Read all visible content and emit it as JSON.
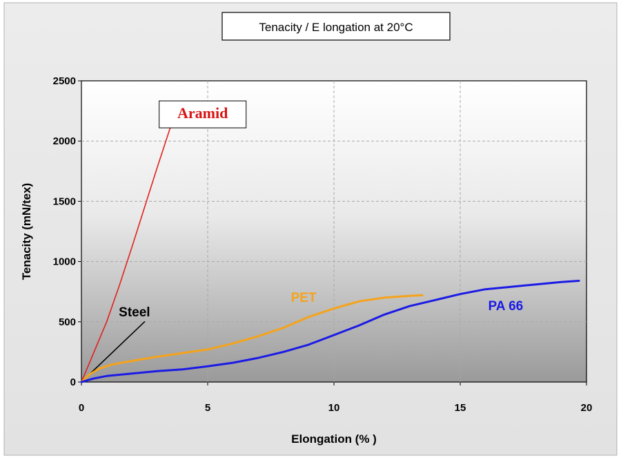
{
  "chart_data": {
    "type": "line",
    "title": "Tenacity  / E longation at 20°C",
    "xlabel": "Elongation (% )",
    "ylabel": "Tenacity (mN/tex)",
    "xlim": [
      0,
      20
    ],
    "ylim": [
      0,
      2500
    ],
    "xticks": [
      "0",
      "5",
      "10",
      "15",
      "20"
    ],
    "yticks": [
      "0",
      "500",
      "1000",
      "1500",
      "2000",
      "2500"
    ],
    "grid": true,
    "series": [
      {
        "name": "Aramid",
        "color": "#e0201c",
        "label_color": "#d81414",
        "x": [
          0,
          0.5,
          1.0,
          1.5,
          2.0,
          2.5,
          3.0,
          3.5,
          3.9
        ],
        "y": [
          0,
          250,
          500,
          800,
          1120,
          1450,
          1780,
          2100,
          2280
        ]
      },
      {
        "name": "Steel",
        "color": "#000000",
        "label_color": "#000000",
        "x": [
          0,
          2.5
        ],
        "y": [
          0,
          500
        ]
      },
      {
        "name": "PET",
        "color": "#f5a31a",
        "label_color": "#f5a31a",
        "x": [
          0,
          0.3,
          0.7,
          1.2,
          2,
          3,
          4,
          5,
          6,
          7,
          8,
          9,
          10,
          11,
          12,
          13,
          13.5
        ],
        "y": [
          0,
          60,
          110,
          145,
          175,
          210,
          240,
          270,
          320,
          380,
          450,
          540,
          610,
          670,
          700,
          715,
          720
        ]
      },
      {
        "name": "PA 66",
        "color": "#1a1ae6",
        "label_color": "#1a1ae6",
        "x": [
          0,
          0.5,
          1,
          2,
          3,
          4,
          5,
          6,
          7,
          8,
          9,
          10,
          11,
          12,
          13,
          14,
          15,
          16,
          17,
          18,
          19,
          19.7
        ],
        "y": [
          0,
          30,
          50,
          70,
          90,
          105,
          130,
          160,
          200,
          250,
          310,
          390,
          470,
          560,
          630,
          680,
          730,
          770,
          790,
          810,
          830,
          840
        ]
      }
    ]
  }
}
